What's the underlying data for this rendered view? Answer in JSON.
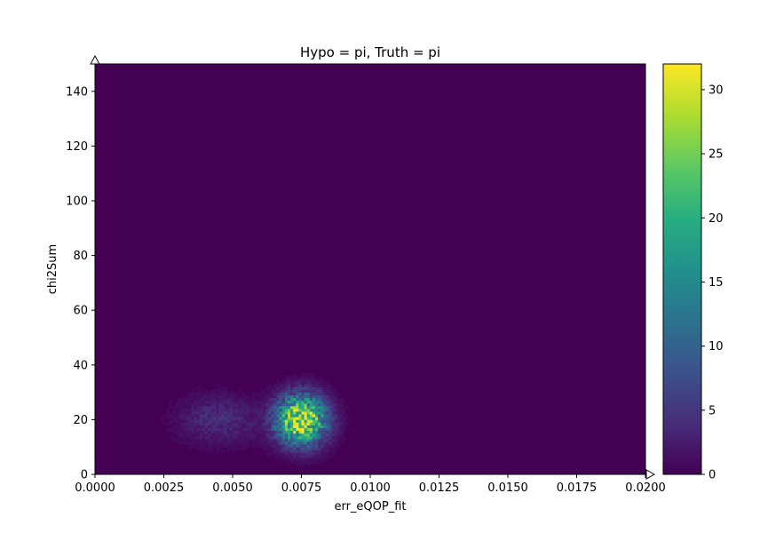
{
  "chart_data": {
    "type": "heatmap",
    "title": "Hypo = pi, Truth = pi",
    "xlabel": "err_eQOP_fit",
    "ylabel": "chi2Sum",
    "xlim": [
      0.0,
      0.02
    ],
    "ylim": [
      0,
      150
    ],
    "x_ticks": [
      "0.0000",
      "0.0025",
      "0.0050",
      "0.0075",
      "0.0100",
      "0.0125",
      "0.0150",
      "0.0175",
      "0.0200"
    ],
    "y_ticks": [
      "0",
      "20",
      "40",
      "60",
      "80",
      "100",
      "120",
      "140"
    ],
    "colorbar": {
      "colormap": "viridis",
      "range": [
        0,
        32
      ],
      "ticks": [
        "0",
        "5",
        "10",
        "15",
        "20",
        "25",
        "30"
      ]
    },
    "bins": {
      "x": 200,
      "y": 150
    },
    "density_peaks": [
      {
        "x": 0.0075,
        "y": 20,
        "peak_count": 32,
        "x_spread": 0.0006,
        "y_spread": 6
      },
      {
        "x": 0.0045,
        "y": 20,
        "peak_count": 4,
        "x_spread": 0.001,
        "y_spread": 6
      }
    ],
    "background_count": 0,
    "grid": false,
    "axis_arrow_markers": true
  }
}
